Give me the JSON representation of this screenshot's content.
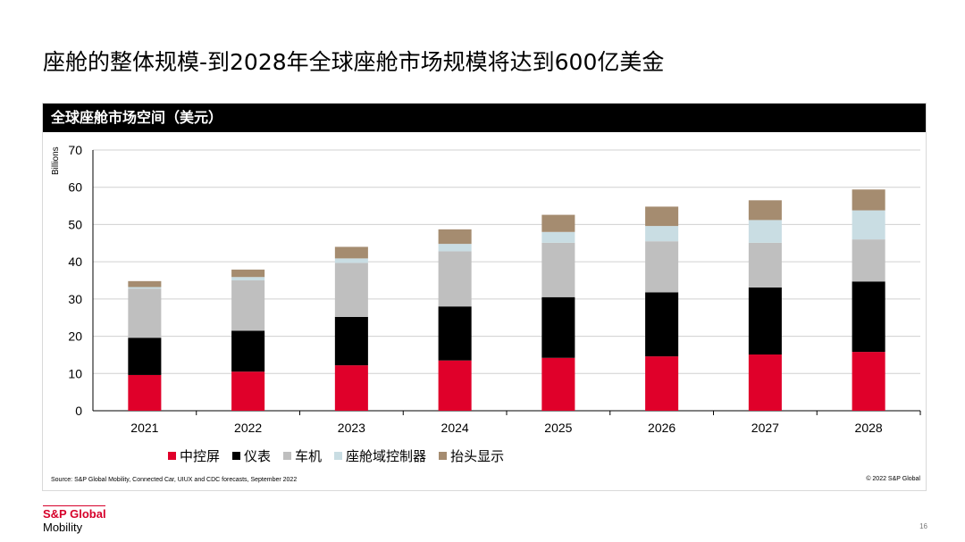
{
  "slide": {
    "title": "座舱的整体规模-到2028年全球座舱市场规模将达到600亿美金",
    "panel_title": "全球座舱市场空间（美元）",
    "source": "Source: S&P Global Mobility, Connected Car, UIUX and CDC forecasts, September 2022",
    "copyright": "© 2022 S&P Global",
    "page_number": "16"
  },
  "logo": {
    "line1": "S&P Global",
    "line2": "Mobility"
  },
  "chart_data": {
    "type": "bar",
    "stacked": true,
    "ylabel": "Billions",
    "ylim": [
      0,
      70
    ],
    "yticks": [
      0,
      10,
      20,
      30,
      40,
      50,
      60,
      70
    ],
    "grid": true,
    "legend_position": "bottom",
    "categories": [
      "2021",
      "2022",
      "2023",
      "2024",
      "2025",
      "2026",
      "2027",
      "2028"
    ],
    "series": [
      {
        "name": "中控屏",
        "color": "#e0002a",
        "values": [
          9.6,
          10.5,
          12.2,
          13.5,
          14.2,
          14.6,
          15.1,
          15.8
        ]
      },
      {
        "name": "仪表",
        "color": "#000000",
        "values": [
          10.0,
          11.0,
          13.0,
          14.5,
          16.3,
          17.2,
          18.0,
          18.9
        ]
      },
      {
        "name": "车机",
        "color": "#bfbfbf",
        "values": [
          13.2,
          13.5,
          14.5,
          14.8,
          14.6,
          13.7,
          12.0,
          11.3
        ]
      },
      {
        "name": "座舱域控制器",
        "color": "#c9dde3",
        "values": [
          0.4,
          0.9,
          1.2,
          2.0,
          2.9,
          4.1,
          6.1,
          7.8
        ]
      },
      {
        "name": "抬头显示",
        "color": "#a58c70",
        "values": [
          1.6,
          2.0,
          3.1,
          3.9,
          4.6,
          5.2,
          5.3,
          5.6
        ]
      }
    ]
  }
}
